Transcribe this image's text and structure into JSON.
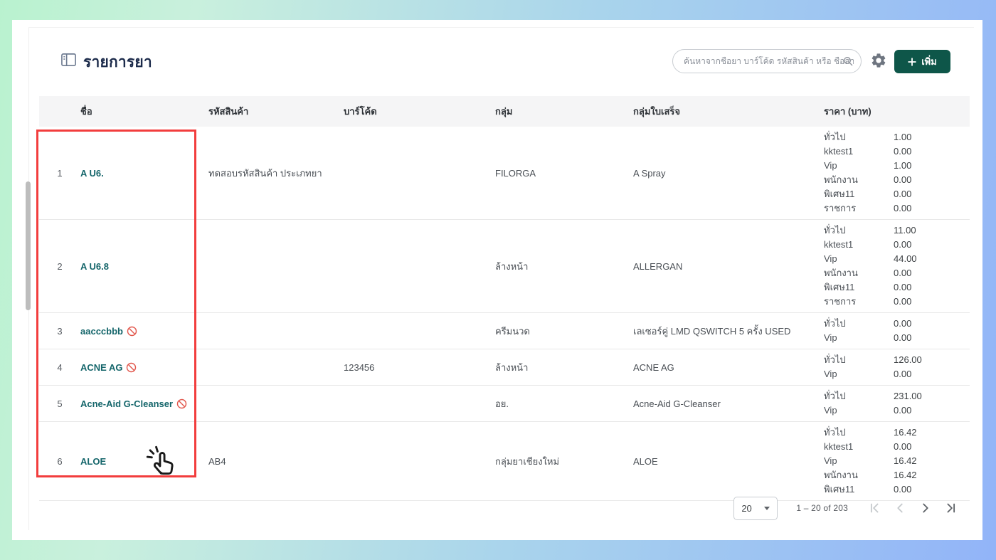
{
  "header": {
    "title": "รายการยา",
    "search_placeholder": "ค้นหาจากชื่อยา บาร์โค้ด รหัสสินค้า หรือ ชื่อสาร",
    "add_button_label": "เพิ่ม"
  },
  "table": {
    "columns": {
      "name": "ชื่อ",
      "product_code": "รหัสสินค้า",
      "barcode": "บาร์โค้ด",
      "group": "กลุ่ม",
      "receipt_group": "กลุ่มใบเสร็จ",
      "price": "ราคา (บาท)"
    },
    "rows": [
      {
        "index": "1",
        "name": "A U6.",
        "restricted": false,
        "product_code": "ทดสอบรหัสสินค้า ประเภทยา",
        "barcode": "",
        "group": "FILORGA",
        "receipt_group": "A Spray",
        "prices": [
          {
            "label": "ทั่วไป",
            "value": "1.00"
          },
          {
            "label": "kktest1",
            "value": "0.00"
          },
          {
            "label": "Vip",
            "value": "1.00"
          },
          {
            "label": "พนักงาน",
            "value": "0.00"
          },
          {
            "label": "พิเศษ11",
            "value": "0.00"
          },
          {
            "label": "ราชการ",
            "value": "0.00"
          }
        ]
      },
      {
        "index": "2",
        "name": "A U6.8",
        "restricted": false,
        "product_code": "",
        "barcode": "",
        "group": "ล้างหน้า",
        "receipt_group": "ALLERGAN",
        "prices": [
          {
            "label": "ทั่วไป",
            "value": "11.00"
          },
          {
            "label": "kktest1",
            "value": "0.00"
          },
          {
            "label": "Vip",
            "value": "44.00"
          },
          {
            "label": "พนักงาน",
            "value": "0.00"
          },
          {
            "label": "พิเศษ11",
            "value": "0.00"
          },
          {
            "label": "ราชการ",
            "value": "0.00"
          }
        ]
      },
      {
        "index": "3",
        "name": "aacccbbb",
        "restricted": true,
        "product_code": "",
        "barcode": "",
        "group": "ครีมนวด",
        "receipt_group": "เลเซอร์คู่ LMD QSWITCH 5 ครั้ง USED",
        "prices": [
          {
            "label": "ทั่วไป",
            "value": "0.00"
          },
          {
            "label": "Vip",
            "value": "0.00"
          }
        ]
      },
      {
        "index": "4",
        "name": "ACNE AG",
        "restricted": true,
        "product_code": "",
        "barcode": "123456",
        "group": "ล้างหน้า",
        "receipt_group": "ACNE AG",
        "prices": [
          {
            "label": "ทั่วไป",
            "value": "126.00"
          },
          {
            "label": "Vip",
            "value": "0.00"
          }
        ]
      },
      {
        "index": "5",
        "name": "Acne-Aid G-Cleanser",
        "restricted": true,
        "product_code": "",
        "barcode": "",
        "group": "อย.",
        "receipt_group": "Acne-Aid G-Cleanser",
        "prices": [
          {
            "label": "ทั่วไป",
            "value": "231.00"
          },
          {
            "label": "Vip",
            "value": "0.00"
          }
        ]
      },
      {
        "index": "6",
        "name": "ALOE",
        "restricted": false,
        "product_code": "AB4",
        "barcode": "",
        "group": "กลุ่มยาเชียงใหม่",
        "receipt_group": "ALOE",
        "prices": [
          {
            "label": "ทั่วไป",
            "value": "16.42"
          },
          {
            "label": "kktest1",
            "value": "0.00"
          },
          {
            "label": "Vip",
            "value": "16.42"
          },
          {
            "label": "พนักงาน",
            "value": "16.42"
          },
          {
            "label": "พิเศษ11",
            "value": "0.00"
          }
        ]
      }
    ]
  },
  "pagination": {
    "page_size": "20",
    "range_label": "1 – 20 of 203"
  },
  "colors": {
    "accent_green": "#0e5649",
    "drug_name_teal": "#15666b",
    "annotation_red": "#f23d3d",
    "restricted_red": "#e2574c",
    "title_navy": "#1b2a4a",
    "bg_gradient_left": "#b9f2cf",
    "bg_gradient_right": "#92b4f8"
  }
}
